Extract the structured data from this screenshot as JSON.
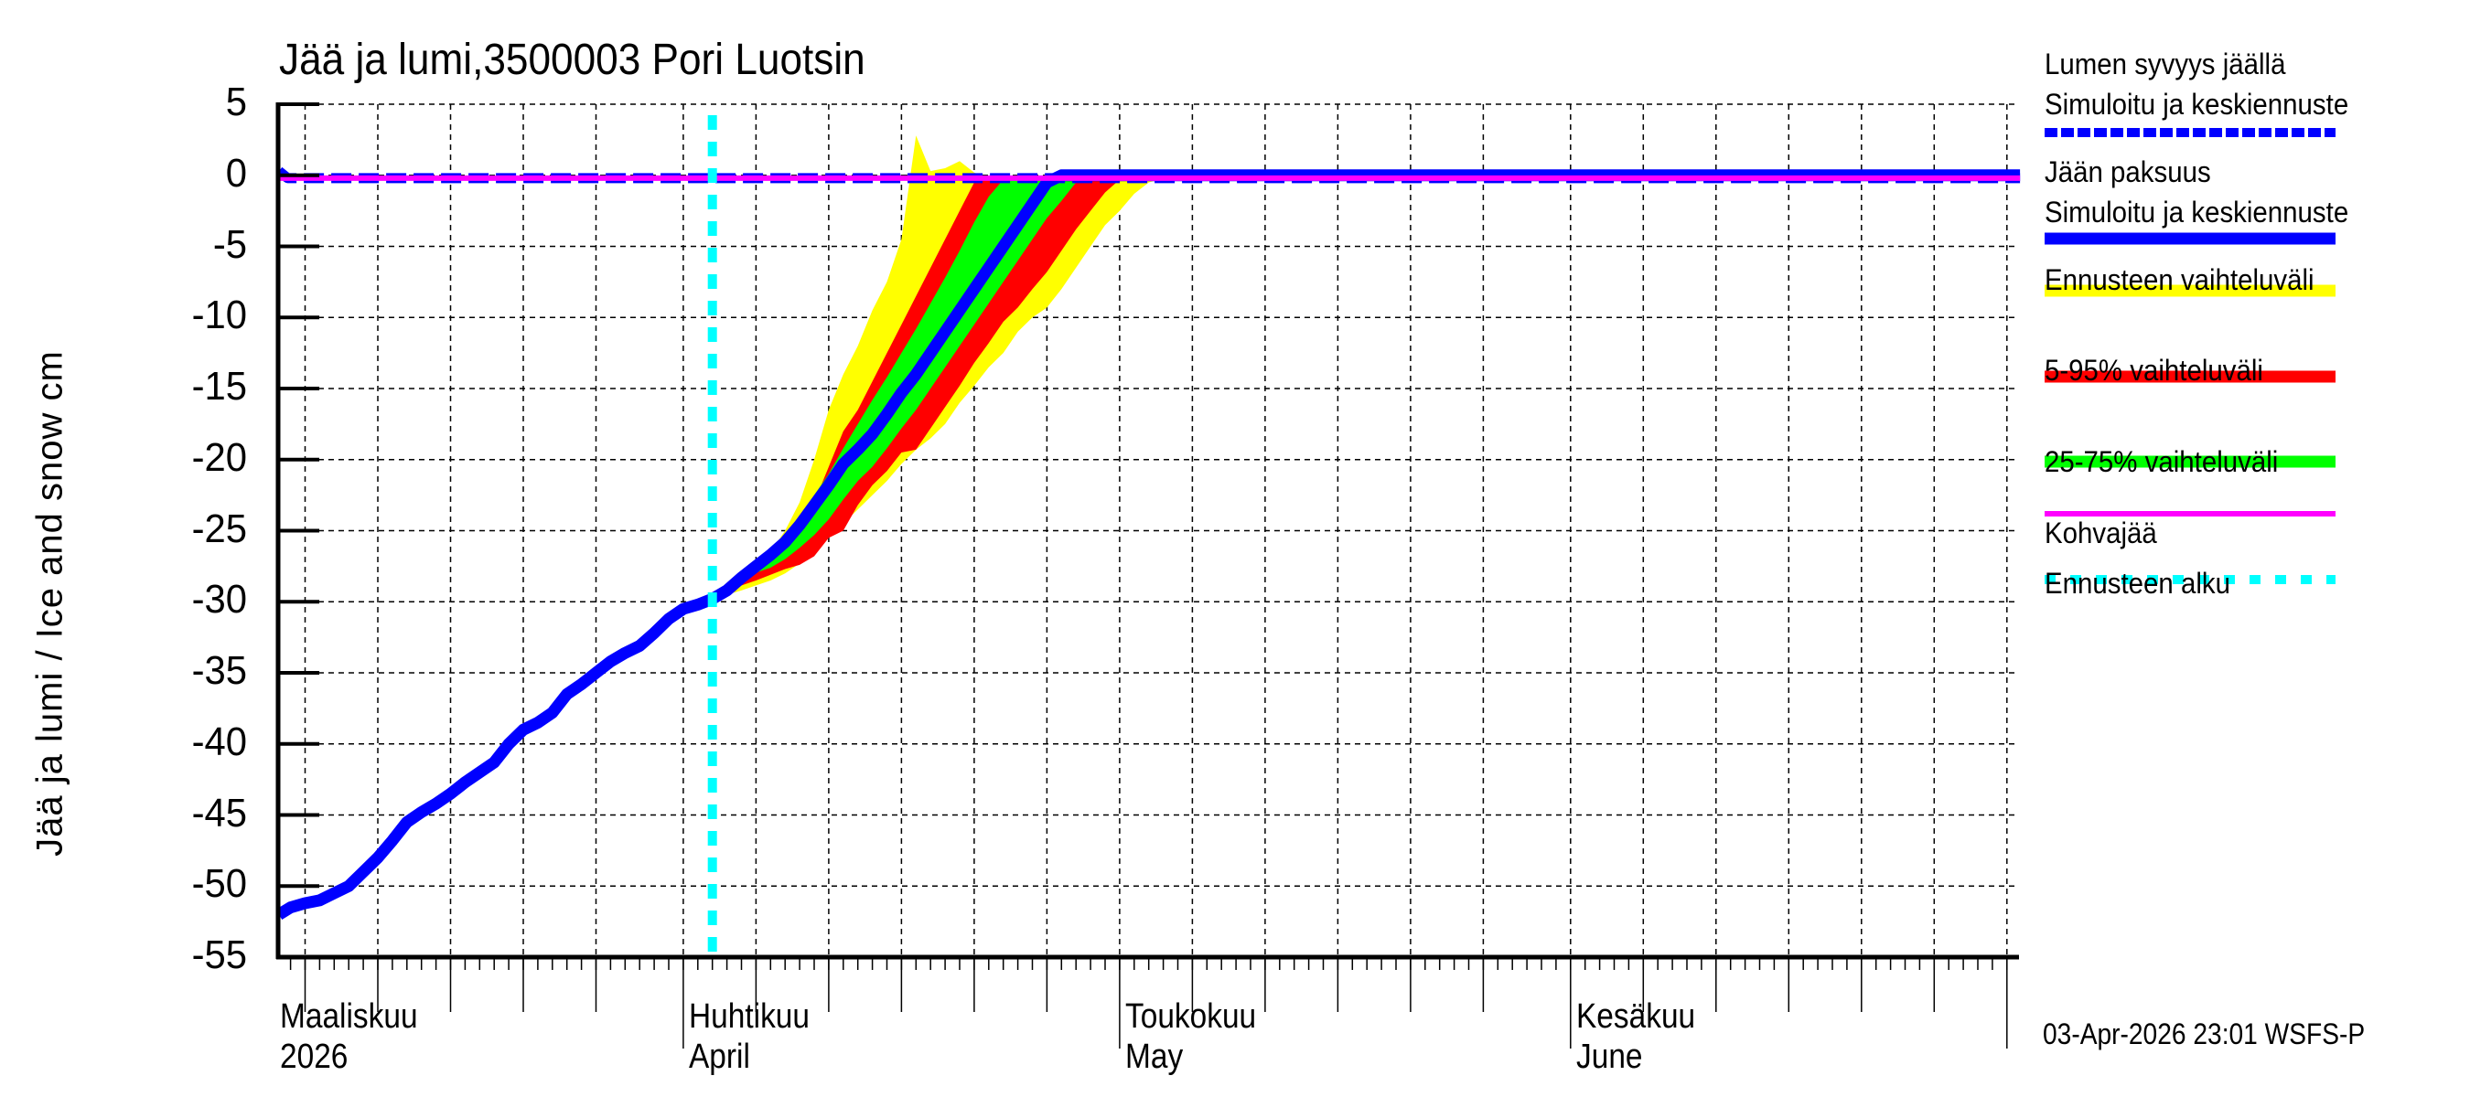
{
  "title": "Jää ja lumi,3500003 Pori Luotsin",
  "y_axis_label": "Jää ja lumi / Ice and snow    cm",
  "timestamp": "03-Apr-2026 23:01 WSFS-P",
  "x_axis": {
    "months": [
      {
        "fi": "Maaliskuu",
        "en": "2026",
        "day": 0
      },
      {
        "fi": "Huhtikuu",
        "en": "April",
        "day": 31
      },
      {
        "fi": "Toukokuu",
        "en": "May",
        "day": 61
      },
      {
        "fi": "Kesäkuu",
        "en": "June",
        "day": 92
      }
    ]
  },
  "legend": [
    {
      "label1": "Lumen syvyys jäällä",
      "label2": "Simuloitu ja keskiennuste",
      "color": "#0000ff",
      "style": "dashed"
    },
    {
      "label1": "Jään paksuus",
      "label2": "Simuloitu ja keskiennuste",
      "color": "#0000ff",
      "style": "solid"
    },
    {
      "label1": "Ennusteen vaihteluväli",
      "label2": "",
      "color": "#ffff00",
      "style": "solid"
    },
    {
      "label1": "5-95% vaihteluväli",
      "label2": "",
      "color": "#ff0000",
      "style": "solid"
    },
    {
      "label1": "25-75% vaihteluväli",
      "label2": "",
      "color": "#00ff00",
      "style": "solid"
    },
    {
      "label1": "Kohvajää",
      "label2": "",
      "color": "#ff00ff",
      "style": "thin"
    },
    {
      "label1": "Ennusteen alku",
      "label2": "",
      "color": "#00ffff",
      "style": "dotted"
    }
  ],
  "chart_data": {
    "type": "area",
    "title": "Jää ja lumi,3500003 Pori Luotsin",
    "xlabel": "",
    "ylabel": "Jää ja lumi / Ice and snow cm",
    "ylim": [
      -55,
      5
    ],
    "yticks": [
      5,
      0,
      -5,
      -10,
      -15,
      -20,
      -25,
      -30,
      -35,
      -40,
      -45,
      -50,
      -55
    ],
    "x_unit": "days since 2026-03-01",
    "xlim": [
      3.2,
      122.9
    ],
    "forecast_start_day": 33,
    "grid": true,
    "legend_position": "right",
    "series": [
      {
        "name": "Jään paksuus (Simuloitu ja keskiennuste)",
        "color": "#0000ff",
        "x": [
          3.2,
          4,
          5,
          6,
          7,
          8,
          9,
          10,
          11,
          12,
          13,
          14,
          15,
          16,
          17,
          18,
          19,
          20,
          21,
          22,
          23,
          24,
          25,
          26,
          27,
          28,
          29,
          30,
          31,
          32,
          33,
          34,
          35,
          36,
          37,
          38,
          39,
          40,
          41,
          42,
          43,
          44,
          45,
          46,
          47,
          48,
          49,
          50,
          51,
          52,
          53,
          54,
          55,
          56,
          57,
          58,
          59,
          60,
          122.9
        ],
        "values": [
          -52,
          -51.5,
          -51.2,
          -51,
          -50.5,
          -50,
          -49,
          -48,
          -46.8,
          -45.5,
          -44.8,
          -44.2,
          -43.5,
          -42.7,
          -42,
          -41.3,
          -40,
          -39,
          -38.5,
          -37.8,
          -36.5,
          -35.8,
          -35,
          -34.2,
          -33.6,
          -33.1,
          -32.2,
          -31.2,
          -30.5,
          -30.2,
          -29.8,
          -29.2,
          -28.3,
          -27.5,
          -26.7,
          -25.8,
          -24.6,
          -23.2,
          -21.8,
          -20.3,
          -19.3,
          -18.2,
          -16.8,
          -15.3,
          -14,
          -12.5,
          -11,
          -9.5,
          -8,
          -6.5,
          -5,
          -3.5,
          -2,
          -0.5,
          0,
          0,
          0,
          0,
          0
        ]
      },
      {
        "name": "Lumen syvyys jäällä (Simuloitu ja keskiennuste)",
        "color": "#0000ff",
        "style": "dashed",
        "x": [
          3.2,
          3.8,
          122.9
        ],
        "values": [
          0.3,
          -0.2,
          -0.2
        ]
      },
      {
        "name": "Kohvajää",
        "color": "#ff00ff",
        "x": [
          3.2,
          122.9
        ],
        "values": [
          -0.2,
          -0.2
        ]
      },
      {
        "name": "Ennusteen vaihteluväli",
        "color": "#ffff00",
        "x": [
          33,
          35,
          37,
          38,
          39,
          40,
          41,
          42,
          43,
          44,
          45,
          46,
          47,
          48,
          49,
          50,
          51,
          52,
          53,
          54,
          55,
          56,
          57,
          58,
          59,
          60,
          61,
          62,
          63,
          64,
          65,
          66,
          67,
          68,
          69,
          70,
          71,
          72,
          73,
          74
        ],
        "upper": [
          -29.8,
          -28.5,
          -26.5,
          -25,
          -23,
          -20,
          -16.5,
          -14,
          -12,
          -9.5,
          -7.5,
          -4.5,
          2.8,
          0.3,
          0.5,
          1.0,
          0.2,
          -0.2,
          -0.2,
          -0.2,
          -0.2,
          -0.2,
          -0.2,
          -0.2,
          -0.2,
          -0.2,
          -0.2,
          -0.2,
          -0.2,
          -0.2,
          -0.2,
          -0.2,
          -0.2,
          -0.2,
          -0.2,
          -0.2,
          -0.2,
          -0.2,
          -0.2,
          -0.2
        ],
        "lower": [
          -29.8,
          -29.2,
          -28.5,
          -28,
          -27.3,
          -26.5,
          -25.3,
          -24.5,
          -23.5,
          -22.5,
          -21.5,
          -20.3,
          -19.3,
          -18.5,
          -17.5,
          -16,
          -14.8,
          -13.5,
          -12.5,
          -11,
          -10,
          -9.3,
          -8,
          -6.5,
          -5,
          -3.5,
          -2.5,
          -1.3,
          -0.5,
          -0.2,
          -0.2,
          -0.2,
          -0.2,
          -0.2,
          -0.2,
          -0.2,
          -0.2,
          -0.2,
          -0.2,
          -0.2
        ]
      },
      {
        "name": "5-95% vaihteluväli",
        "color": "#ff0000",
        "x": [
          34,
          36,
          38,
          39,
          40,
          41,
          42,
          43,
          44,
          45,
          46,
          47,
          48,
          49,
          50,
          51,
          52,
          53,
          54,
          55,
          56,
          57,
          58,
          59,
          60,
          61,
          62,
          63,
          64,
          65,
          66,
          67,
          68,
          69
        ],
        "upper": [
          -29.2,
          -27.5,
          -26.2,
          -25,
          -23,
          -20.5,
          -18,
          -16.5,
          -14.5,
          -12.5,
          -10.5,
          -8.5,
          -6.5,
          -4.5,
          -2.5,
          -0.5,
          -0.2,
          -0.2,
          -0.2,
          -0.2,
          -0.2,
          -0.2,
          -0.2,
          -0.2,
          -0.2,
          -0.2,
          -0.2,
          -0.2,
          -0.2,
          -0.2,
          -0.2,
          -0.2,
          -0.2,
          -0.2
        ],
        "lower": [
          -29.2,
          -28.5,
          -27.7,
          -27.4,
          -26.8,
          -25.5,
          -25,
          -23.2,
          -21.8,
          -20.8,
          -19.5,
          -19.3,
          -17.8,
          -16.3,
          -14.8,
          -13.2,
          -11.8,
          -10.3,
          -9.3,
          -8,
          -6.8,
          -5.3,
          -3.8,
          -2.5,
          -1.2,
          -0.3,
          -0.2,
          -0.2,
          -0.2,
          -0.2,
          -0.2,
          -0.2,
          -0.2,
          -0.2
        ]
      },
      {
        "name": "25-75% vaihteluväli",
        "color": "#00ff00",
        "x": [
          35,
          37,
          38,
          39,
          40,
          41,
          42,
          43,
          44,
          45,
          46,
          47,
          48,
          49,
          50,
          51,
          52,
          53,
          54,
          55,
          56,
          57,
          58,
          59,
          60,
          61,
          62,
          63,
          64
        ],
        "upper": [
          -28.3,
          -27,
          -26,
          -24.3,
          -22.5,
          -21,
          -19.2,
          -17.5,
          -15.8,
          -14.2,
          -12.5,
          -10.8,
          -9,
          -7.2,
          -5.3,
          -3.3,
          -1.5,
          -0.3,
          -0.2,
          -0.2,
          -0.2,
          -0.2,
          -0.2,
          -0.2,
          -0.2,
          -0.2,
          -0.2,
          -0.2,
          -0.2
        ],
        "lower": [
          -28.3,
          -27.6,
          -27,
          -26.2,
          -25.3,
          -24.2,
          -22.8,
          -21.5,
          -20.5,
          -19.2,
          -17.8,
          -16.5,
          -15,
          -13.5,
          -12,
          -10.5,
          -9,
          -7.5,
          -6,
          -4.5,
          -3,
          -1.8,
          -0.5,
          -0.2,
          -0.2,
          -0.2,
          -0.2,
          -0.2,
          -0.2
        ]
      }
    ]
  }
}
